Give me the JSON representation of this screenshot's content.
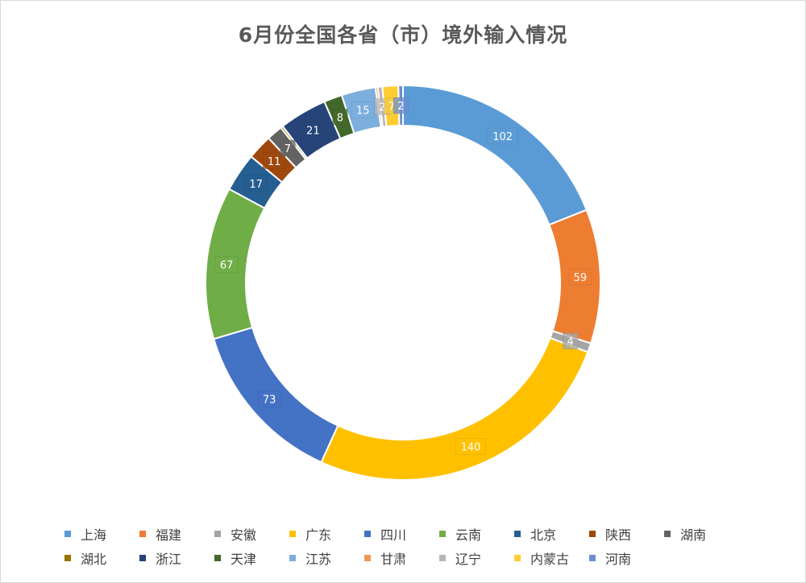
{
  "chart_data": {
    "type": "pie",
    "variant": "doughnut",
    "title": "6月份全国各省（市）境外输入情况",
    "categories": [
      "上海",
      "福建",
      "安徽",
      "广东",
      "四川",
      "云南",
      "北京",
      "陕西",
      "湖南",
      "湖北",
      "浙江",
      "天津",
      "江苏",
      "甘肃",
      "辽宁",
      "内蒙古",
      "河南"
    ],
    "values": [
      102,
      59,
      4,
      140,
      73,
      67,
      17,
      11,
      7,
      1,
      21,
      8,
      15,
      1,
      2,
      7,
      2
    ],
    "data_labels": [
      "102",
      "59",
      "4",
      "140",
      "73",
      "67",
      "17",
      "11",
      "7",
      "",
      "21",
      "8",
      "15",
      "",
      "2",
      "7",
      "2"
    ],
    "colors": [
      "#5B9BD5",
      "#ED7D31",
      "#A5A5A5",
      "#FFC000",
      "#4472C4",
      "#70AD47",
      "#255E91",
      "#9E480E",
      "#636363",
      "#997300",
      "#264478",
      "#43682B",
      "#7CAFDD",
      "#F1975A",
      "#B7B7B7",
      "#FFCD33",
      "#698ED0"
    ],
    "legend_position": "bottom"
  }
}
